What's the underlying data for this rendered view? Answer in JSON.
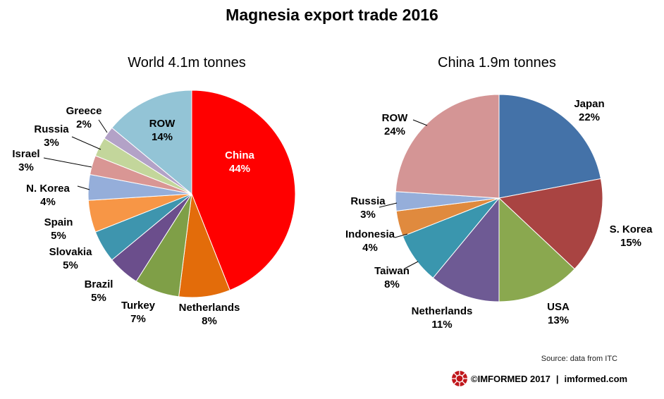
{
  "title": "Magnesia export trade 2016",
  "source": "Source: data from ITC",
  "footer": {
    "copyright": "©IMFORMED 2017",
    "separator": "|",
    "site": "imformed.com"
  },
  "chart_data": [
    {
      "type": "pie",
      "title": "World 4.1m tonnes",
      "start_angle_deg": 0,
      "direction": "clockwise",
      "slices": [
        {
          "label": "China",
          "value": 44,
          "pct": "44%",
          "color": "#FF0000"
        },
        {
          "label": "Netherlands",
          "value": 8,
          "pct": "8%",
          "color": "#E36C0A"
        },
        {
          "label": "Turkey",
          "value": 7,
          "pct": "7%",
          "color": "#7F9F47"
        },
        {
          "label": "Brazil",
          "value": 5,
          "pct": "5%",
          "color": "#6B4E8C"
        },
        {
          "label": "Slovakia",
          "value": 5,
          "pct": "5%",
          "color": "#3E95AE"
        },
        {
          "label": "Spain",
          "value": 5,
          "pct": "5%",
          "color": "#F79646"
        },
        {
          "label": "N. Korea",
          "value": 4,
          "pct": "4%",
          "color": "#95AEDA"
        },
        {
          "label": "Israel",
          "value": 3,
          "pct": "3%",
          "color": "#D99694"
        },
        {
          "label": "Russia",
          "value": 3,
          "pct": "3%",
          "color": "#C3D69B"
        },
        {
          "label": "Greece",
          "value": 2,
          "pct": "2%",
          "color": "#B3A2C7"
        },
        {
          "label": "ROW",
          "value": 14,
          "pct": "14%",
          "color": "#93C4D6"
        }
      ]
    },
    {
      "type": "pie",
      "title": "China 1.9m tonnes",
      "start_angle_deg": 0,
      "direction": "clockwise",
      "slices": [
        {
          "label": "Japan",
          "value": 22,
          "pct": "22%",
          "color": "#4472A8"
        },
        {
          "label": "S. Korea",
          "value": 15,
          "pct": "15%",
          "color": "#A94442"
        },
        {
          "label": "USA",
          "value": 13,
          "pct": "13%",
          "color": "#8AA84F"
        },
        {
          "label": "Netherlands",
          "value": 11,
          "pct": "11%",
          "color": "#6E5A94"
        },
        {
          "label": "Taiwan",
          "value": 8,
          "pct": "8%",
          "color": "#3A96AE"
        },
        {
          "label": "Indonesia",
          "value": 4,
          "pct": "4%",
          "color": "#E08A3E"
        },
        {
          "label": "Russia",
          "value": 3,
          "pct": "3%",
          "color": "#95AEDA"
        },
        {
          "label": "ROW",
          "value": 24,
          "pct": "24%",
          "color": "#D49595"
        }
      ]
    }
  ]
}
